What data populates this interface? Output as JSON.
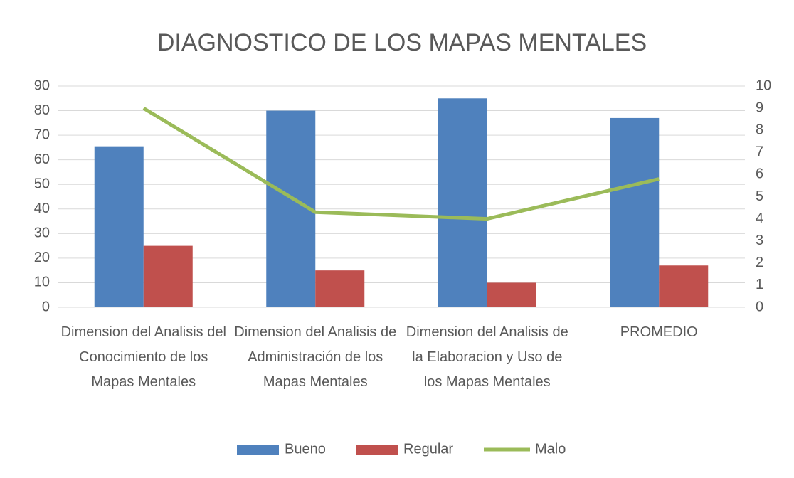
{
  "chart_data": {
    "type": "bar",
    "title": "DIAGNOSTICO DE LOS MAPAS MENTALES",
    "categories": [
      "Dimension del Analisis del Conocimiento de los Mapas Mentales",
      "Dimension del Analisis de Administración de los Mapas Mentales",
      "Dimension del Analisis de la Elaboracion y Uso de los Mapas Mentales",
      "PROMEDIO"
    ],
    "series": [
      {
        "name": "Bueno",
        "type": "bar",
        "color": "#4f81bd",
        "values": [
          65.5,
          80,
          85,
          77
        ]
      },
      {
        "name": "Regular",
        "type": "bar",
        "color": "#c0504d",
        "values": [
          25,
          15,
          10,
          17
        ]
      },
      {
        "name": "Malo",
        "type": "line",
        "axis": "y2",
        "color": "#9bbb59",
        "values": [
          9,
          4.3,
          4,
          5.8
        ]
      }
    ],
    "ylim": [
      0,
      90
    ],
    "yticks": [
      0,
      10,
      20,
      30,
      40,
      50,
      60,
      70,
      80,
      90
    ],
    "y2lim": [
      0,
      10
    ],
    "y2ticks": [
      0,
      1,
      2,
      3,
      4,
      5,
      6,
      7,
      8,
      9,
      10
    ],
    "grid": true,
    "legend": "bottom"
  }
}
